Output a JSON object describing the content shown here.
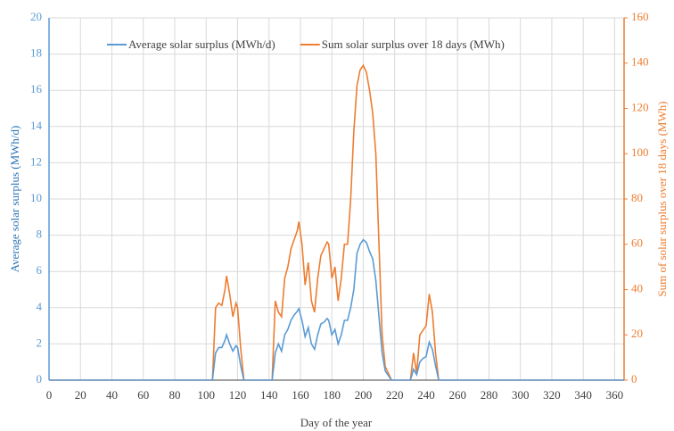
{
  "chart_data": {
    "type": "line",
    "x_label": "Day of the year",
    "y_label": "Average solar surplus (MWh/d)",
    "y2_label": "Sum of solar surplus over 18 days (MWh)",
    "x": [
      0,
      104,
      106,
      108,
      110,
      112,
      113,
      115,
      117,
      119,
      120,
      122,
      124,
      142,
      144,
      146,
      148,
      150,
      152,
      154,
      156,
      158,
      159,
      161,
      163,
      165,
      167,
      169,
      171,
      173,
      175,
      177,
      178,
      180,
      182,
      184,
      186,
      188,
      190,
      192,
      194,
      196,
      198,
      200,
      202,
      204,
      206,
      208,
      210,
      212,
      214,
      218,
      230,
      232,
      234,
      236,
      238,
      240,
      242,
      244,
      246,
      248,
      366
    ],
    "series": [
      {
        "name": "Average solar surplus (MWh/d)",
        "color": "#5b9bd5",
        "values": [
          0,
          0,
          1.5,
          1.8,
          1.8,
          2.2,
          2.5,
          2.0,
          1.6,
          1.9,
          1.8,
          0.8,
          0,
          0,
          1.5,
          2.0,
          1.6,
          2.5,
          2.8,
          3.3,
          3.6,
          3.8,
          3.95,
          3.3,
          2.4,
          2.9,
          2.0,
          1.7,
          2.5,
          3.1,
          3.2,
          3.4,
          3.3,
          2.5,
          2.8,
          2.0,
          2.5,
          3.3,
          3.3,
          4.0,
          5.0,
          7.0,
          7.5,
          7.75,
          7.6,
          7.1,
          6.7,
          5.5,
          3.5,
          1.5,
          0.5,
          0,
          0,
          0.6,
          0.3,
          1.0,
          1.2,
          1.3,
          2.1,
          1.7,
          0.8,
          0,
          0
        ]
      },
      {
        "name": "Sum solar surplus over 18 days (MWh)",
        "color": "#ed7d31",
        "axis": "y2",
        "values": [
          0,
          0,
          32,
          34,
          33,
          40,
          46,
          38,
          28,
          34,
          32,
          14,
          0,
          0,
          35,
          30,
          28,
          45,
          50,
          58,
          62,
          66,
          70,
          60,
          42,
          52,
          35,
          30,
          45,
          55,
          58,
          61,
          60,
          45,
          50,
          35,
          45,
          60,
          60,
          80,
          110,
          130,
          137,
          139,
          136,
          128,
          118,
          100,
          60,
          20,
          6,
          0,
          0,
          12,
          3,
          20,
          22,
          24,
          38,
          30,
          12,
          0,
          0
        ]
      }
    ],
    "xlim": [
      0,
      366
    ],
    "xticks": [
      0,
      20,
      40,
      60,
      80,
      100,
      120,
      140,
      160,
      180,
      200,
      220,
      240,
      260,
      280,
      300,
      320,
      340,
      360
    ],
    "ylim": [
      0,
      20
    ],
    "yticks": [
      0,
      2,
      4,
      6,
      8,
      10,
      12,
      14,
      16,
      18,
      20
    ],
    "y2lim": [
      0,
      160
    ],
    "y2ticks": [
      0,
      20,
      40,
      60,
      80,
      100,
      120,
      140,
      160
    ],
    "grid": true
  }
}
